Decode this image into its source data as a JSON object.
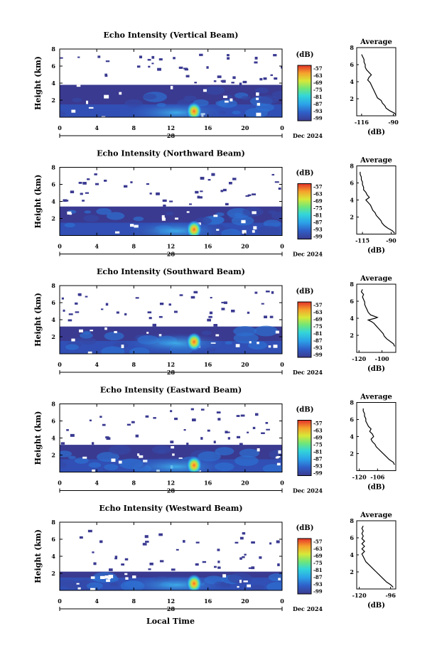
{
  "figure": {
    "colorbar_unit": "(dB)",
    "colorbar_ticks": [
      "-57",
      "-63",
      "-69",
      "-75",
      "-81",
      "-87",
      "-93",
      "-99"
    ],
    "average_title": "Average",
    "average_xlabel": "(dB)",
    "ylabel": "Height (km)",
    "date_label": "Dec 2024",
    "day_label": "28",
    "x_ticks": [
      "0",
      "4",
      "8",
      "12",
      "16",
      "20",
      "0"
    ],
    "bottom_xlabel": "Local Time",
    "colors": {
      "low": "#3a3a91",
      "high": "#e8382a"
    }
  },
  "chart_data": [
    {
      "type": "heatmap",
      "title": "Echo Intensity (Vertical Beam)",
      "x_unit": "Local Time (h)",
      "xlim": [
        0,
        24
      ],
      "ylabel": "Height (km)",
      "ylim": [
        0,
        8
      ],
      "y_ticks": [
        "2",
        "4",
        "6",
        "8"
      ],
      "colorbar_range_db": [
        -99,
        -57
      ],
      "hotspot": {
        "x": 14.5,
        "y": 0.7,
        "peak_db": -60
      },
      "echo_top_km": 3.8,
      "average_profile": {
        "x_ticks": [
          "-116",
          "-90"
        ],
        "xlim": [
          -120,
          -88
        ],
        "ylim": [
          0,
          8
        ],
        "y_ticks": [
          "2",
          "4",
          "6",
          "8"
        ],
        "points": [
          [
            -88,
            0.1
          ],
          [
            -89,
            0.3
          ],
          [
            -93,
            0.6
          ],
          [
            -96,
            0.9
          ],
          [
            -97,
            1.2
          ],
          [
            -99,
            1.5
          ],
          [
            -100,
            1.8
          ],
          [
            -103,
            2.1
          ],
          [
            -104,
            2.4
          ],
          [
            -105,
            2.7
          ],
          [
            -106,
            3.0
          ],
          [
            -107,
            3.3
          ],
          [
            -108,
            3.6
          ],
          [
            -109,
            3.9
          ],
          [
            -111,
            4.2
          ],
          [
            -110,
            4.5
          ],
          [
            -108,
            4.8
          ],
          [
            -110,
            5.1
          ],
          [
            -112,
            5.4
          ],
          [
            -113,
            5.7
          ],
          [
            -113,
            6.0
          ],
          [
            -114,
            6.3
          ],
          [
            -114,
            6.6
          ],
          [
            -115,
            6.9
          ],
          [
            -116,
            7.2
          ]
        ]
      }
    },
    {
      "type": "heatmap",
      "title": "Echo Intensity (Northward Beam)",
      "x_unit": "Local Time (h)",
      "xlim": [
        0,
        24
      ],
      "ylabel": "Height (km)",
      "ylim": [
        0,
        8
      ],
      "y_ticks": [
        "2",
        "4",
        "6",
        "8"
      ],
      "colorbar_range_db": [
        -99,
        -57
      ],
      "hotspot": {
        "x": 14.5,
        "y": 0.7,
        "peak_db": -60
      },
      "echo_top_km": 3.4,
      "average_profile": {
        "x_ticks": [
          "-115",
          "-90"
        ],
        "xlim": [
          -120,
          -86
        ],
        "ylim": [
          0,
          8
        ],
        "y_ticks": [
          "2",
          "4",
          "6",
          "8"
        ],
        "points": [
          [
            -87,
            0.1
          ],
          [
            -89,
            0.4
          ],
          [
            -93,
            0.7
          ],
          [
            -96,
            1.0
          ],
          [
            -98,
            1.3
          ],
          [
            -99,
            1.6
          ],
          [
            -101,
            1.9
          ],
          [
            -103,
            2.2
          ],
          [
            -104,
            2.5
          ],
          [
            -106,
            2.8
          ],
          [
            -107,
            3.1
          ],
          [
            -108,
            3.4
          ],
          [
            -110,
            3.7
          ],
          [
            -112,
            4.0
          ],
          [
            -109,
            4.3
          ],
          [
            -111,
            4.6
          ],
          [
            -112,
            4.9
          ],
          [
            -114,
            5.2
          ],
          [
            -114,
            5.5
          ],
          [
            -115,
            5.8
          ],
          [
            -115,
            6.1
          ],
          [
            -116,
            6.4
          ],
          [
            -116,
            6.7
          ],
          [
            -117,
            7.0
          ],
          [
            -117,
            7.3
          ]
        ]
      }
    },
    {
      "type": "heatmap",
      "title": "Echo Intensity (Southward Beam)",
      "x_unit": "Local Time (h)",
      "xlim": [
        0,
        24
      ],
      "ylabel": "Height (km)",
      "ylim": [
        0,
        8
      ],
      "y_ticks": [
        "2",
        "4",
        "6",
        "8"
      ],
      "colorbar_range_db": [
        -99,
        -57
      ],
      "hotspot": {
        "x": 14.5,
        "y": 1.4,
        "peak_db": -60
      },
      "echo_top_km": 3.2,
      "average_profile": {
        "x_ticks": [
          "-120",
          "-100"
        ],
        "xlim": [
          -122,
          -88
        ],
        "ylim": [
          0,
          8
        ],
        "y_ticks": [
          "2",
          "4",
          "6",
          "8"
        ],
        "points": [
          [
            -89,
            0.7
          ],
          [
            -90,
            1.0
          ],
          [
            -93,
            1.3
          ],
          [
            -96,
            1.6
          ],
          [
            -98,
            1.9
          ],
          [
            -99,
            2.2
          ],
          [
            -101,
            2.5
          ],
          [
            -103,
            2.8
          ],
          [
            -105,
            3.1
          ],
          [
            -107,
            3.4
          ],
          [
            -109,
            3.6
          ],
          [
            -112,
            3.8
          ],
          [
            -106,
            4.0
          ],
          [
            -104,
            4.1
          ],
          [
            -110,
            4.4
          ],
          [
            -112,
            4.7
          ],
          [
            -113,
            5.0
          ],
          [
            -114,
            5.3
          ],
          [
            -115,
            5.6
          ],
          [
            -115,
            5.9
          ],
          [
            -116,
            6.2
          ],
          [
            -117,
            6.5
          ],
          [
            -116,
            6.8
          ],
          [
            -118,
            7.1
          ],
          [
            -117,
            7.4
          ]
        ]
      }
    },
    {
      "type": "heatmap",
      "title": "Echo Intensity (Eastward Beam)",
      "x_unit": "Local Time (h)",
      "xlim": [
        0,
        24
      ],
      "ylabel": "Height (km)",
      "ylim": [
        0,
        8
      ],
      "y_ticks": [
        "2",
        "4",
        "6",
        "8"
      ],
      "colorbar_range_db": [
        -99,
        -57
      ],
      "hotspot": {
        "x": 14.5,
        "y": 0.8,
        "peak_db": -60
      },
      "echo_top_km": 3.2,
      "average_profile": {
        "x_ticks": [
          "-120",
          "-106"
        ],
        "xlim": [
          -122,
          -92
        ],
        "ylim": [
          0,
          8
        ],
        "y_ticks": [
          "2",
          "4",
          "6",
          "8"
        ],
        "points": [
          [
            -93,
            0.7
          ],
          [
            -94,
            1.0
          ],
          [
            -97,
            1.3
          ],
          [
            -99,
            1.6
          ],
          [
            -101,
            1.9
          ],
          [
            -103,
            2.2
          ],
          [
            -105,
            2.5
          ],
          [
            -107,
            2.8
          ],
          [
            -108,
            3.1
          ],
          [
            -110,
            3.4
          ],
          [
            -111,
            3.7
          ],
          [
            -109,
            4.0
          ],
          [
            -110,
            4.3
          ],
          [
            -112,
            4.6
          ],
          [
            -111,
            4.9
          ],
          [
            -113,
            5.2
          ],
          [
            -114,
            5.5
          ],
          [
            -115,
            5.8
          ],
          [
            -115,
            6.1
          ],
          [
            -116,
            6.4
          ],
          [
            -116,
            6.7
          ],
          [
            -117,
            7.0
          ],
          [
            -117,
            7.3
          ]
        ]
      }
    },
    {
      "type": "heatmap",
      "title": "Echo Intensity (Westward Beam)",
      "x_unit": "Local Time (h)",
      "xlim": [
        0,
        24
      ],
      "ylabel": "Height (km)",
      "ylim": [
        0,
        8
      ],
      "y_ticks": [
        "2",
        "4",
        "6",
        "8"
      ],
      "colorbar_range_db": [
        -99,
        -57
      ],
      "hotspot": {
        "x": 14.5,
        "y": 0.8,
        "peak_db": -60
      },
      "echo_top_km": 2.2,
      "average_profile": {
        "x_ticks": [
          "-120",
          "-96"
        ],
        "xlim": [
          -122,
          -92
        ],
        "ylim": [
          0,
          8
        ],
        "y_ticks": [
          "2",
          "4",
          "6",
          "8"
        ],
        "points": [
          [
            -94,
            0.2
          ],
          [
            -96,
            0.5
          ],
          [
            -99,
            0.8
          ],
          [
            -101,
            1.1
          ],
          [
            -103,
            1.4
          ],
          [
            -105,
            1.7
          ],
          [
            -107,
            2.0
          ],
          [
            -109,
            2.3
          ],
          [
            -111,
            2.6
          ],
          [
            -113,
            2.9
          ],
          [
            -115,
            3.2
          ],
          [
            -116,
            3.5
          ],
          [
            -117,
            3.8
          ],
          [
            -118,
            4.1
          ],
          [
            -116,
            4.4
          ],
          [
            -118,
            4.7
          ],
          [
            -116,
            5.0
          ],
          [
            -118,
            5.3
          ],
          [
            -116,
            5.6
          ],
          [
            -118,
            5.9
          ],
          [
            -117,
            6.2
          ],
          [
            -118,
            6.5
          ],
          [
            -117,
            6.8
          ],
          [
            -118,
            7.1
          ],
          [
            -117,
            7.4
          ]
        ]
      }
    }
  ]
}
